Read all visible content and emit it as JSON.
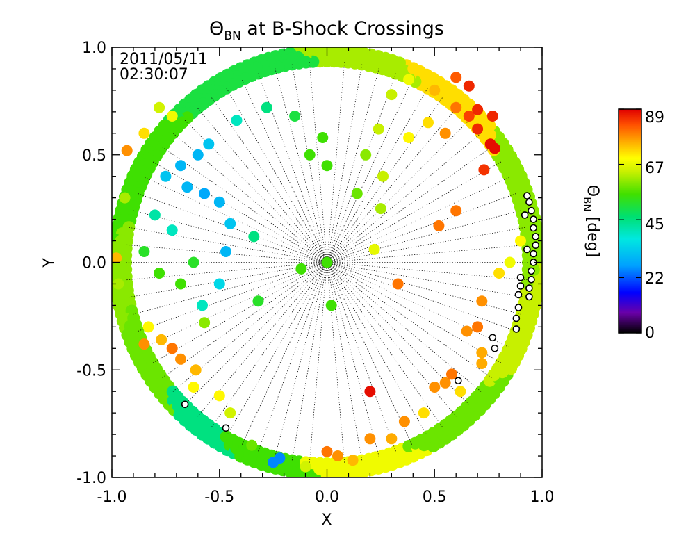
{
  "chart_data": {
    "type": "scatter",
    "title_symbol": "Θ",
    "title_subscript": "BN",
    "title_rest": " at B-Shock Crossings",
    "timestamp_date": "2011/05/11",
    "timestamp_time": "02:30:07",
    "xlabel": "X",
    "ylabel": "Y",
    "xlim": [
      -1.0,
      1.0
    ],
    "ylim": [
      -1.0,
      1.0
    ],
    "x_ticks": [
      "-1.0",
      "-0.5",
      "0.0",
      "0.5",
      "1.0"
    ],
    "y_ticks": [
      "-1.0",
      "-0.5",
      "0.0",
      "0.5",
      "1.0"
    ],
    "grid": false,
    "colorbar": {
      "label_symbol": "Θ",
      "label_subscript": "BN",
      "label_unit": " [deg]",
      "range": [
        0,
        89
      ],
      "ticks": [
        "0",
        "22",
        "45",
        "67",
        "89"
      ],
      "colormap": [
        "#000000",
        "#6a00a8",
        "#0000ff",
        "#00a0ff",
        "#00e8e0",
        "#00e070",
        "#40e000",
        "#c8f000",
        "#ffff00",
        "#ffb000",
        "#ff5000",
        "#e00000"
      ]
    },
    "points": [
      {
        "x": 0.0,
        "y": 0.0,
        "value": 55
      },
      {
        "x": -0.12,
        "y": -0.03,
        "value": 55
      },
      {
        "x": 0.02,
        "y": -0.2,
        "value": 55
      },
      {
        "x": 0.22,
        "y": 0.06,
        "value": 67
      },
      {
        "x": 0.33,
        "y": -0.1,
        "value": 80
      },
      {
        "x": 0.2,
        "y": -0.6,
        "value": 88
      },
      {
        "x": 0.52,
        "y": 0.17,
        "value": 80
      },
      {
        "x": 0.6,
        "y": 0.24,
        "value": 80
      },
      {
        "x": 0.73,
        "y": 0.43,
        "value": 85
      },
      {
        "x": 0.78,
        "y": 0.53,
        "value": 88
      },
      {
        "x": 0.76,
        "y": 0.55,
        "value": 88
      },
      {
        "x": 0.7,
        "y": 0.62,
        "value": 86
      },
      {
        "x": 0.77,
        "y": 0.68,
        "value": 86
      },
      {
        "x": 0.66,
        "y": 0.68,
        "value": 84
      },
      {
        "x": 0.7,
        "y": 0.71,
        "value": 86
      },
      {
        "x": 0.6,
        "y": 0.72,
        "value": 80
      },
      {
        "x": 0.5,
        "y": 0.8,
        "value": 75
      },
      {
        "x": 0.38,
        "y": 0.85,
        "value": 68
      },
      {
        "x": 0.3,
        "y": 0.78,
        "value": 64
      },
      {
        "x": 0.24,
        "y": 0.62,
        "value": 64
      },
      {
        "x": 0.18,
        "y": 0.5,
        "value": 60
      },
      {
        "x": 0.14,
        "y": 0.32,
        "value": 58
      },
      {
        "x": 0.25,
        "y": 0.25,
        "value": 62
      },
      {
        "x": 0.26,
        "y": 0.4,
        "value": 64
      },
      {
        "x": 0.38,
        "y": 0.58,
        "value": 70
      },
      {
        "x": 0.47,
        "y": 0.65,
        "value": 72
      },
      {
        "x": 0.55,
        "y": 0.6,
        "value": 78
      },
      {
        "x": -0.02,
        "y": 0.58,
        "value": 55
      },
      {
        "x": -0.08,
        "y": 0.5,
        "value": 55
      },
      {
        "x": 0.0,
        "y": 0.45,
        "value": 55
      },
      {
        "x": -0.15,
        "y": 0.68,
        "value": 50
      },
      {
        "x": -0.28,
        "y": 0.72,
        "value": 45
      },
      {
        "x": -0.42,
        "y": 0.66,
        "value": 40
      },
      {
        "x": -0.55,
        "y": 0.55,
        "value": 32
      },
      {
        "x": -0.6,
        "y": 0.5,
        "value": 30
      },
      {
        "x": -0.68,
        "y": 0.45,
        "value": 30
      },
      {
        "x": -0.75,
        "y": 0.4,
        "value": 32
      },
      {
        "x": -0.65,
        "y": 0.35,
        "value": 30
      },
      {
        "x": -0.57,
        "y": 0.32,
        "value": 28
      },
      {
        "x": -0.5,
        "y": 0.28,
        "value": 30
      },
      {
        "x": -0.45,
        "y": 0.18,
        "value": 32
      },
      {
        "x": -0.47,
        "y": 0.05,
        "value": 30
      },
      {
        "x": -0.5,
        "y": -0.1,
        "value": 35
      },
      {
        "x": -0.58,
        "y": -0.2,
        "value": 40
      },
      {
        "x": -0.72,
        "y": 0.15,
        "value": 40
      },
      {
        "x": -0.8,
        "y": 0.22,
        "value": 42
      },
      {
        "x": -0.85,
        "y": 0.05,
        "value": 52
      },
      {
        "x": -0.78,
        "y": -0.05,
        "value": 55
      },
      {
        "x": -0.68,
        "y": -0.1,
        "value": 55
      },
      {
        "x": -0.62,
        "y": 0.0,
        "value": 52
      },
      {
        "x": -0.34,
        "y": 0.12,
        "value": 45
      },
      {
        "x": -0.32,
        "y": -0.18,
        "value": 52
      },
      {
        "x": -0.57,
        "y": -0.28,
        "value": 60
      },
      {
        "x": -0.83,
        "y": -0.3,
        "value": 70
      },
      {
        "x": -0.85,
        "y": -0.38,
        "value": 78
      },
      {
        "x": -0.77,
        "y": -0.36,
        "value": 75
      },
      {
        "x": -0.72,
        "y": -0.4,
        "value": 80
      },
      {
        "x": -0.68,
        "y": -0.45,
        "value": 78
      },
      {
        "x": -0.61,
        "y": -0.5,
        "value": 75
      },
      {
        "x": -0.62,
        "y": -0.58,
        "value": 70
      },
      {
        "x": -0.5,
        "y": -0.62,
        "value": 70
      },
      {
        "x": -0.45,
        "y": -0.7,
        "value": 65
      },
      {
        "x": -0.35,
        "y": -0.85,
        "value": 58
      },
      {
        "x": -0.22,
        "y": -0.91,
        "value": 25
      },
      {
        "x": -0.25,
        "y": -0.93,
        "value": 25
      },
      {
        "x": -0.1,
        "y": -0.95,
        "value": 65
      },
      {
        "x": 0.0,
        "y": -0.88,
        "value": 80
      },
      {
        "x": 0.05,
        "y": -0.9,
        "value": 78
      },
      {
        "x": 0.12,
        "y": -0.92,
        "value": 75
      },
      {
        "x": 0.2,
        "y": -0.82,
        "value": 78
      },
      {
        "x": 0.3,
        "y": -0.82,
        "value": 76
      },
      {
        "x": 0.36,
        "y": -0.74,
        "value": 78
      },
      {
        "x": 0.45,
        "y": -0.7,
        "value": 72
      },
      {
        "x": 0.5,
        "y": -0.58,
        "value": 78
      },
      {
        "x": 0.55,
        "y": -0.56,
        "value": 78
      },
      {
        "x": 0.58,
        "y": -0.52,
        "value": 80
      },
      {
        "x": 0.62,
        "y": -0.6,
        "value": 72
      },
      {
        "x": 0.65,
        "y": -0.32,
        "value": 78
      },
      {
        "x": 0.7,
        "y": -0.3,
        "value": 80
      },
      {
        "x": 0.72,
        "y": -0.42,
        "value": 76
      },
      {
        "x": 0.72,
        "y": -0.47,
        "value": 76
      },
      {
        "x": 0.72,
        "y": -0.18,
        "value": 78
      },
      {
        "x": 0.8,
        "y": -0.05,
        "value": 72
      },
      {
        "x": 0.85,
        "y": 0.0,
        "value": 68
      },
      {
        "x": 0.9,
        "y": 0.1,
        "value": 70
      },
      {
        "x": -0.94,
        "y": 0.3,
        "value": 62
      },
      {
        "x": -0.98,
        "y": 0.02,
        "value": 75
      },
      {
        "x": -0.97,
        "y": -0.1,
        "value": 62
      },
      {
        "x": -0.93,
        "y": 0.52,
        "value": 78
      },
      {
        "x": -0.85,
        "y": 0.6,
        "value": 72
      },
      {
        "x": -0.72,
        "y": 0.68,
        "value": 68
      },
      {
        "x": -0.78,
        "y": 0.72,
        "value": 65
      },
      {
        "x": 0.4,
        "y": 0.9,
        "value": 72
      },
      {
        "x": 0.6,
        "y": 0.86,
        "value": 82
      },
      {
        "x": 0.66,
        "y": 0.82,
        "value": 86
      }
    ],
    "highlighted_points": [
      {
        "x": 0.93,
        "y": 0.31
      },
      {
        "x": 0.94,
        "y": 0.28
      },
      {
        "x": 0.95,
        "y": 0.24
      },
      {
        "x": 0.96,
        "y": 0.2
      },
      {
        "x": 0.96,
        "y": 0.16
      },
      {
        "x": 0.97,
        "y": 0.12
      },
      {
        "x": 0.97,
        "y": 0.08
      },
      {
        "x": 0.96,
        "y": 0.04
      },
      {
        "x": 0.96,
        "y": 0.0
      },
      {
        "x": 0.95,
        "y": -0.04
      },
      {
        "x": 0.95,
        "y": -0.08
      },
      {
        "x": 0.94,
        "y": -0.12
      },
      {
        "x": 0.94,
        "y": -0.16
      },
      {
        "x": 0.92,
        "y": 0.22
      },
      {
        "x": 0.93,
        "y": 0.06
      },
      {
        "x": 0.9,
        "y": -0.07
      },
      {
        "x": 0.9,
        "y": -0.11
      },
      {
        "x": 0.89,
        "y": -0.15
      },
      {
        "x": 0.89,
        "y": -0.21
      },
      {
        "x": 0.88,
        "y": -0.26
      },
      {
        "x": 0.88,
        "y": -0.31
      },
      {
        "x": 0.77,
        "y": -0.35
      },
      {
        "x": 0.78,
        "y": -0.4
      },
      {
        "x": 0.61,
        "y": -0.55
      },
      {
        "x": -0.66,
        "y": -0.66
      },
      {
        "x": -0.47,
        "y": -0.77
      }
    ]
  }
}
